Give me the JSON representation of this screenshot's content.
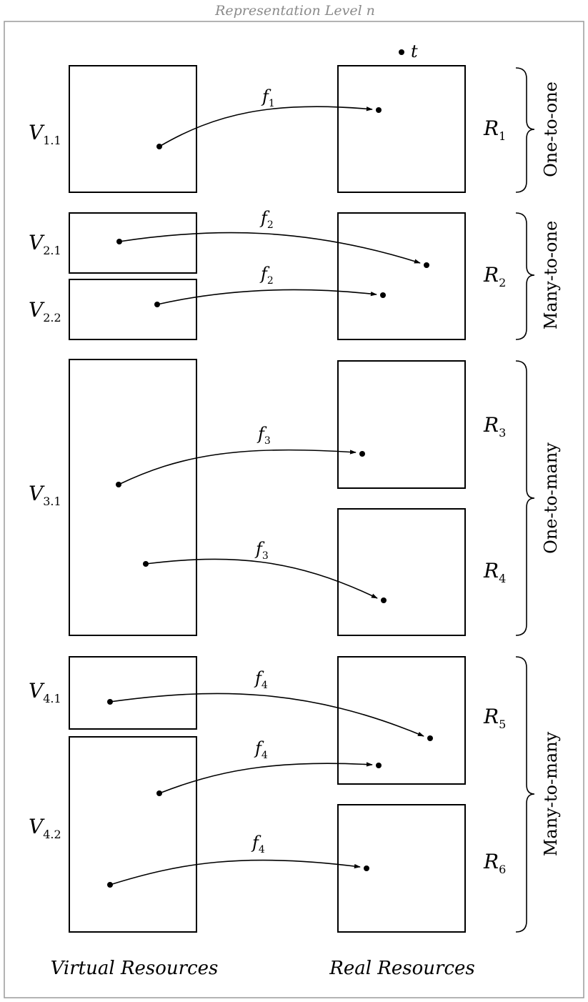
{
  "header": {
    "title": "Representation Level n"
  },
  "footer": {
    "left_label": "Virtual Resources",
    "right_label": "Real Resources"
  },
  "point_t": {
    "label": "t"
  },
  "virtual": [
    {
      "id": "v11",
      "base": "V",
      "sub": "1.1"
    },
    {
      "id": "v21",
      "base": "V",
      "sub": "2.1"
    },
    {
      "id": "v22",
      "base": "V",
      "sub": "2.2"
    },
    {
      "id": "v31",
      "base": "V",
      "sub": "3.1"
    },
    {
      "id": "v41",
      "base": "V",
      "sub": "4.1"
    },
    {
      "id": "v42",
      "base": "V",
      "sub": "4.2"
    }
  ],
  "real": [
    {
      "id": "r1",
      "base": "R",
      "sub": "1"
    },
    {
      "id": "r2",
      "base": "R",
      "sub": "2"
    },
    {
      "id": "r3",
      "base": "R",
      "sub": "3"
    },
    {
      "id": "r4",
      "base": "R",
      "sub": "4"
    },
    {
      "id": "r5",
      "base": "R",
      "sub": "5"
    },
    {
      "id": "r6",
      "base": "R",
      "sub": "6"
    }
  ],
  "mappings": [
    {
      "id": "m1",
      "base": "f",
      "sub": "1",
      "from": "v11",
      "to": "r1"
    },
    {
      "id": "m2",
      "base": "f",
      "sub": "2",
      "from": "v21",
      "to": "r2"
    },
    {
      "id": "m3",
      "base": "f",
      "sub": "2",
      "from": "v22",
      "to": "r2"
    },
    {
      "id": "m4",
      "base": "f",
      "sub": "3",
      "from": "v31",
      "to": "r3"
    },
    {
      "id": "m5",
      "base": "f",
      "sub": "3",
      "from": "v31",
      "to": "r4"
    },
    {
      "id": "m6",
      "base": "f",
      "sub": "4",
      "from": "v41",
      "to": "r5"
    },
    {
      "id": "m7",
      "base": "f",
      "sub": "4",
      "from": "v42",
      "to": "r5"
    },
    {
      "id": "m8",
      "base": "f",
      "sub": "4",
      "from": "v42",
      "to": "r6"
    }
  ],
  "groups": [
    {
      "id": "g1",
      "label": "One-to-one"
    },
    {
      "id": "g2",
      "label": "Many-to-one"
    },
    {
      "id": "g3",
      "label": "One-to-many"
    },
    {
      "id": "g4",
      "label": "Many-to-many"
    }
  ]
}
